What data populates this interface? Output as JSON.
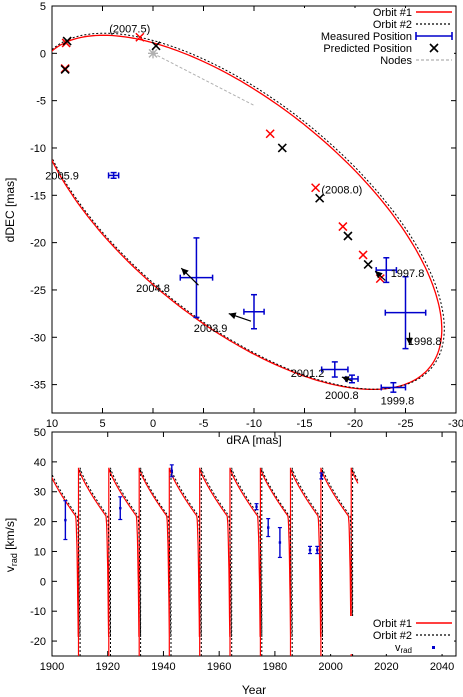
{
  "chart_data": [
    {
      "type": "scatter",
      "xlabel": "dRA [mas]",
      "ylabel": "dDEC [mas]",
      "xlim": [
        10,
        -30
      ],
      "ylim": [
        -38,
        5
      ],
      "x_ticks": [
        "10",
        "5",
        "0",
        "-5",
        "-10",
        "-15",
        "-20",
        "-25",
        "-30"
      ],
      "y_ticks": [
        "5",
        "0",
        "-5",
        "-10",
        "-15",
        "-20",
        "-25",
        "-30",
        "-35"
      ],
      "x_tick_values": [
        10,
        5,
        0,
        -5,
        -10,
        -15,
        -20,
        -25,
        -30
      ],
      "y_tick_values": [
        5,
        0,
        -5,
        -10,
        -15,
        -20,
        -25,
        -30,
        -35
      ],
      "legend": {
        "position": "top-right",
        "entries": [
          "Orbit #1",
          "Orbit #2",
          "Measured Position",
          "Predicted Position",
          "Nodes"
        ]
      },
      "colors": {
        "orbit1": "#ff0000",
        "orbit2": "#000000",
        "measured": "#0000cc",
        "predicted": "#000000",
        "nodes": "#b0b0b0"
      },
      "orbit": {
        "a": 25.1,
        "b": 11.3,
        "center": [
          -8.4,
          -16.8
        ],
        "rotation_deg": 41.7
      },
      "nodes_line": [
        [
          0,
          0
        ],
        [
          -10,
          -5.5
        ]
      ],
      "measured": [
        {
          "label": "2005.9",
          "x": 3.9,
          "y": -12.9,
          "xerr": 0.5,
          "yerr": 0.3
        },
        {
          "label": "2004.8",
          "x": -4.3,
          "y": -23.7,
          "xerr": 1.6,
          "yerr": 4.2
        },
        {
          "label": "2003.9",
          "x": -10.0,
          "y": -27.3,
          "xerr": 1.0,
          "yerr": 1.8
        },
        {
          "label": "2001.2",
          "x": -18.0,
          "y": -33.4,
          "xerr": 1.3,
          "yerr": 0.8
        },
        {
          "label": "2000.8",
          "x": -19.7,
          "y": -34.4,
          "xerr": 0.6,
          "yerr": 0.4
        },
        {
          "label": "1999.8",
          "x": -23.8,
          "y": -35.3,
          "xerr": 1.2,
          "yerr": 0.5
        },
        {
          "label": "1998.8",
          "x": -25.0,
          "y": -27.4,
          "xerr": 2.0,
          "yerr": 3.8
        },
        {
          "label": "1997.8",
          "x": -23.1,
          "y": -22.9,
          "xerr": 1.0,
          "yerr": 1.3
        }
      ],
      "predicted": [
        [
          8.5,
          1.3
        ],
        [
          8.7,
          -1.7
        ],
        [
          -0.3,
          0.8
        ],
        [
          -12.8,
          -10.0
        ],
        [
          -16.5,
          -15.3
        ],
        [
          -19.3,
          -19.3
        ],
        [
          -21.3,
          -22.3
        ]
      ],
      "red_ticks": [
        [
          1.3,
          1.7
        ],
        [
          8.6,
          1.1
        ],
        [
          8.7,
          -1.6
        ],
        [
          -11.6,
          -8.5
        ],
        [
          -16.1,
          -14.2
        ],
        [
          -18.8,
          -18.3
        ],
        [
          -20.8,
          -21.3
        ],
        [
          -22.5,
          -23.8
        ]
      ],
      "arrows": [
        {
          "from": [
            -4.5,
            -24.5
          ],
          "to": [
            -2.8,
            -22.7
          ]
        },
        {
          "from": [
            -9.7,
            -28.3
          ],
          "to": [
            -7.5,
            -27.5
          ]
        },
        {
          "from": [
            -19.7,
            -34.6
          ],
          "to": [
            -18.7,
            -34.2
          ]
        },
        {
          "from": [
            -25.4,
            -29.5
          ],
          "to": [
            -25.4,
            -30.8
          ]
        },
        {
          "from": [
            -23.0,
            -24.0
          ],
          "to": [
            -22.0,
            -23.0
          ]
        }
      ],
      "annotations": [
        {
          "text": "(2007.5)",
          "x": 2.3,
          "y": 2.6
        },
        {
          "text": "(2008.0)",
          "x": -18.7,
          "y": -14.4
        },
        {
          "text": "2005.9",
          "x": 9.0,
          "y": -12.9
        },
        {
          "text": "2004.8",
          "x": 0.0,
          "y": -24.8
        },
        {
          "text": "2003.9",
          "x": -5.7,
          "y": -29.0
        },
        {
          "text": "2001.2",
          "x": -15.3,
          "y": -33.8
        },
        {
          "text": "2000.8",
          "x": -18.7,
          "y": -36.1
        },
        {
          "text": "1999.8",
          "x": -24.2,
          "y": -36.7
        },
        {
          "text": "1998.8",
          "x": -26.9,
          "y": -30.4
        },
        {
          "text": "1997.8",
          "x": -25.2,
          "y": -23.2
        }
      ]
    },
    {
      "type": "line",
      "xlabel": "Year",
      "ylabel": "v_rad [km/s]",
      "xlim": [
        1900,
        2045
      ],
      "ylim": [
        -25,
        50
      ],
      "x_ticks": [
        "1900",
        "1920",
        "1940",
        "1960",
        "1980",
        "2000",
        "2020",
        "2040"
      ],
      "y_ticks": [
        "-20",
        "-10",
        "0",
        "10",
        "20",
        "30",
        "40",
        "50"
      ],
      "x_tick_values": [
        1900,
        1920,
        1940,
        1960,
        1980,
        2000,
        2020,
        2040
      ],
      "y_tick_values": [
        -20,
        -10,
        0,
        10,
        20,
        30,
        40,
        50
      ],
      "legend": {
        "position": "bottom-right",
        "entries": [
          "Orbit #1",
          "Orbit #2",
          "v_rad"
        ]
      },
      "period_years": 10.87,
      "periastron_epochs_orbit1": [
        1898.6,
        1909.5,
        1920.4,
        1931.3,
        1942.1,
        1953.0,
        1963.9,
        1974.8,
        1985.6,
        1996.5,
        2007.4
      ],
      "periastron_epochs_orbit2": [
        1899.2,
        1910.1,
        1921.0,
        1931.8,
        1942.7,
        1953.6,
        1964.5,
        1975.3,
        1986.2,
        1997.1,
        2007.9
      ],
      "curve_max": 38,
      "curve_min": -25,
      "curve_end": 2009.8,
      "measurements": [
        {
          "x": 1904.8,
          "y": 20.5,
          "yerr": 6.5
        },
        {
          "x": 1924.5,
          "y": 24.5,
          "yerr": 3.8
        },
        {
          "x": 1943.0,
          "y": 37.0,
          "yerr": 2.0
        },
        {
          "x": 1973.4,
          "y": 25.0,
          "yerr": 1.0
        },
        {
          "x": 1977.6,
          "y": 18.0,
          "yerr": 3.0
        },
        {
          "x": 1981.8,
          "y": 13.0,
          "yerr": 5.0
        },
        {
          "x": 1992.6,
          "y": 10.5,
          "yerr": 1.2
        },
        {
          "x": 1995.2,
          "y": 10.5,
          "yerr": 1.2
        },
        {
          "x": 1996.7,
          "y": 35.3,
          "yerr": 1.0
        }
      ]
    }
  ]
}
